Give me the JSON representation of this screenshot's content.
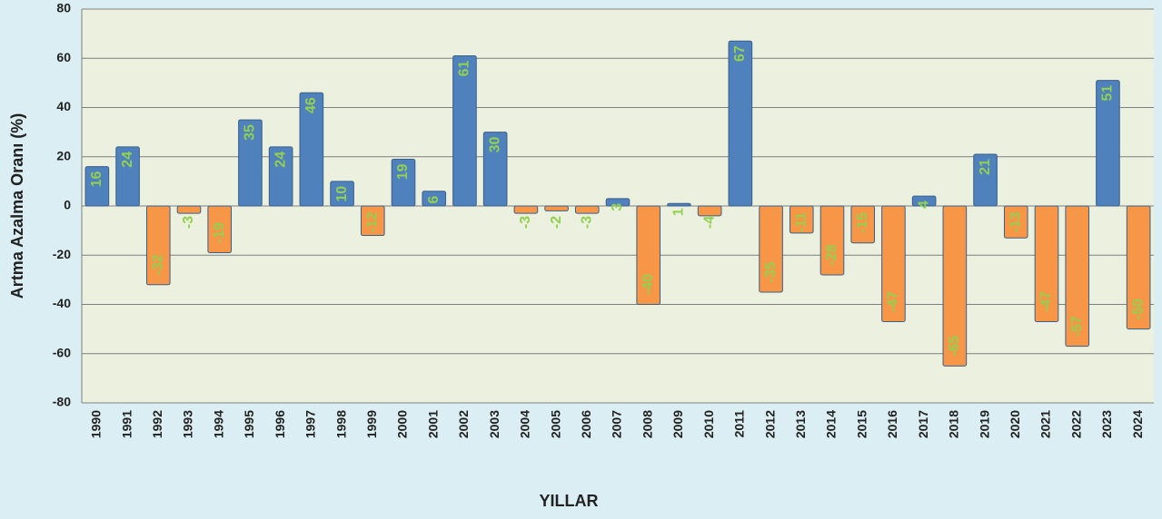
{
  "chart_data": {
    "type": "bar",
    "x_label": "YILLAR",
    "y_label": "Artma Azalma Oranı (%)",
    "categories": [
      "1990",
      "1991",
      "1992",
      "1993",
      "1994",
      "1995",
      "1996",
      "1997",
      "1998",
      "1999",
      "2000",
      "2001",
      "2002",
      "2003",
      "2004",
      "2005",
      "2006",
      "2007",
      "2008",
      "2009",
      "2010",
      "2011",
      "2012",
      "2013",
      "2014",
      "2015",
      "2016",
      "2017",
      "2018",
      "2019",
      "2020",
      "2021",
      "2022",
      "2023",
      "2024"
    ],
    "values": [
      16,
      24,
      -32,
      -3,
      -19,
      35,
      24,
      46,
      10,
      -12,
      19,
      6,
      61,
      30,
      -3,
      -2,
      -3,
      3,
      -40,
      1,
      -4,
      67,
      -35,
      -11,
      -28,
      -15,
      -47,
      4,
      -65,
      21,
      -13,
      -47,
      -57,
      51,
      -50
    ],
    "positive_color": "#4f81bd",
    "negative_color": "#f79646",
    "label_color": "#92d050",
    "ylim": [
      -80,
      80
    ],
    "yticks": [
      -80,
      -60,
      -40,
      -20,
      0,
      20,
      40,
      60,
      80
    ],
    "grid": true
  }
}
